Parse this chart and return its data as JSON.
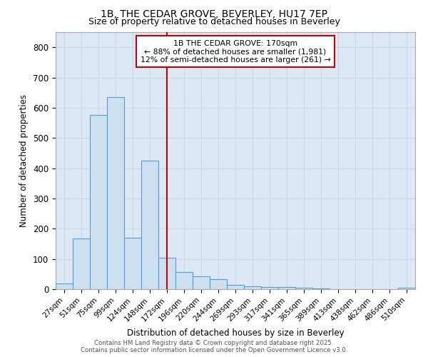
{
  "title_line1": "1B, THE CEDAR GROVE, BEVERLEY, HU17 7EP",
  "title_line2": "Size of property relative to detached houses in Beverley",
  "xlabel": "Distribution of detached houses by size in Beverley",
  "ylabel": "Number of detached properties",
  "categories": [
    "27sqm",
    "51sqm",
    "75sqm",
    "99sqm",
    "124sqm",
    "148sqm",
    "172sqm",
    "196sqm",
    "220sqm",
    "244sqm",
    "269sqm",
    "293sqm",
    "317sqm",
    "341sqm",
    "365sqm",
    "389sqm",
    "413sqm",
    "438sqm",
    "462sqm",
    "486sqm",
    "510sqm"
  ],
  "values": [
    18,
    168,
    575,
    635,
    170,
    425,
    105,
    57,
    42,
    33,
    15,
    10,
    8,
    6,
    4,
    2,
    1,
    0,
    0,
    0,
    5
  ],
  "bar_color": "#cce0f0",
  "bar_edge_color": "#5b9bd5",
  "vline_index": 6,
  "vline_color": "#cc0000",
  "annotation_text": "1B THE CEDAR GROVE: 170sqm\n← 88% of detached houses are smaller (1,981)\n12% of semi-detached houses are larger (261) →",
  "annotation_box_facecolor": "#ffffff",
  "annotation_box_edgecolor": "#cc0000",
  "ylim": [
    0,
    850
  ],
  "yticks": [
    0,
    100,
    200,
    300,
    400,
    500,
    600,
    700,
    800
  ],
  "footer_line1": "Contains HM Land Registry data © Crown copyright and database right 2025.",
  "footer_line2": "Contains public sector information licensed under the Open Government Licence v3.0.",
  "grid_color": "#c8d8e8",
  "background_color": "#dce8f4",
  "fig_background": "#ffffff"
}
